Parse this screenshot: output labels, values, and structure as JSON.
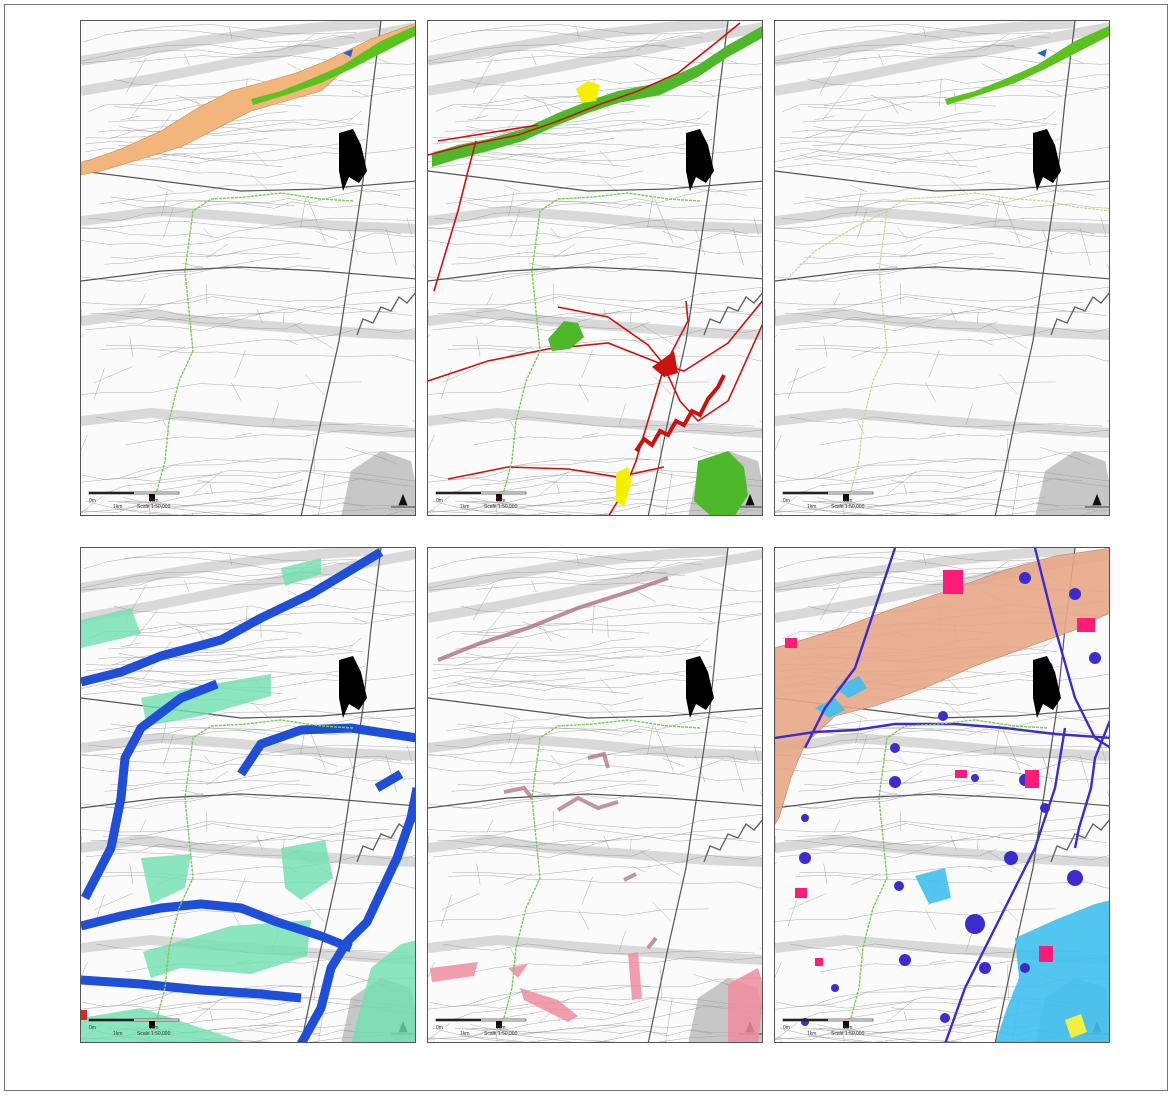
{
  "figure": {
    "panels": [
      {
        "id": "a",
        "scale": {
          "left": "0m",
          "right": "1km",
          "unit": "1km",
          "ratio": "Scale 1:50,000"
        },
        "overlay_colors": [
          "#f2b67c",
          "#5bc21e",
          "#2a5fd6"
        ]
      },
      {
        "id": "b",
        "scale": {
          "left": "0m",
          "right": "1km",
          "unit": "1km",
          "ratio": "Scale 1:50,000"
        },
        "overlay_colors": [
          "#cc1111",
          "#4cb82a",
          "#f5f000"
        ]
      },
      {
        "id": "c",
        "scale": {
          "left": "0m",
          "right": "1km",
          "unit": "1km",
          "ratio": "Scale 1:50,000"
        },
        "overlay_colors": [
          "#5bc21e",
          "#2a5fd6"
        ]
      },
      {
        "id": "d",
        "scale": {
          "left": "0m",
          "right": "1km",
          "unit": "1km",
          "ratio": "Scale 1:50,000"
        },
        "overlay_colors": [
          "#1f4fd8",
          "#6fe0b0",
          "#d9262a"
        ]
      },
      {
        "id": "e",
        "scale": {
          "left": "0m",
          "right": "1km",
          "unit": "1km",
          "ratio": "Scale 1:50,000"
        },
        "overlay_colors": [
          "#a86a78",
          "#f08ca0"
        ]
      },
      {
        "id": "f",
        "scale": {
          "left": "0m",
          "right": "1km",
          "unit": "1km",
          "ratio": "Scale 1:50,000"
        },
        "overlay_colors": [
          "#e8a888",
          "#3d2bd0",
          "#ff1c78",
          "#3fbfef",
          "#f0f040"
        ]
      }
    ],
    "common": {
      "site_color": "#000000",
      "route_color": "#7fc85a",
      "base_line_color": "#8a8a8a",
      "road_color": "#555555",
      "compass": "north-arrow-icon"
    }
  }
}
